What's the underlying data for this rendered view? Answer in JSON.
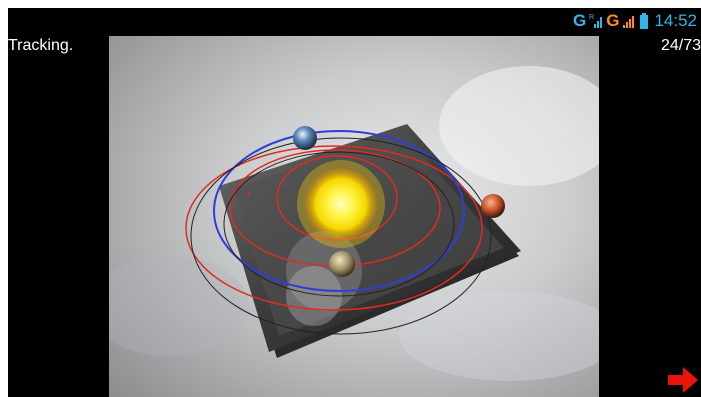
{
  "status_bar": {
    "network_1": "G",
    "network_1_roaming": "R",
    "network_2": "G",
    "clock": "14:52",
    "accent_color": "#33b5e5",
    "warn_color": "#ff8a1c",
    "icons": [
      "signal-roaming-icon",
      "signal-icon",
      "battery-icon"
    ]
  },
  "overlay": {
    "tracking_status": "Tracking.",
    "frame_counter": "24/73"
  },
  "scene": {
    "description_icons": [
      "sun-icon",
      "earth-icon",
      "mars-icon",
      "moon-icon"
    ],
    "orbit_colors": [
      "#e02b20",
      "#2d3fd6",
      "#222222"
    ]
  },
  "navigation": {
    "next_icon": "arrow-right-icon",
    "next_color": "#e8140c"
  }
}
